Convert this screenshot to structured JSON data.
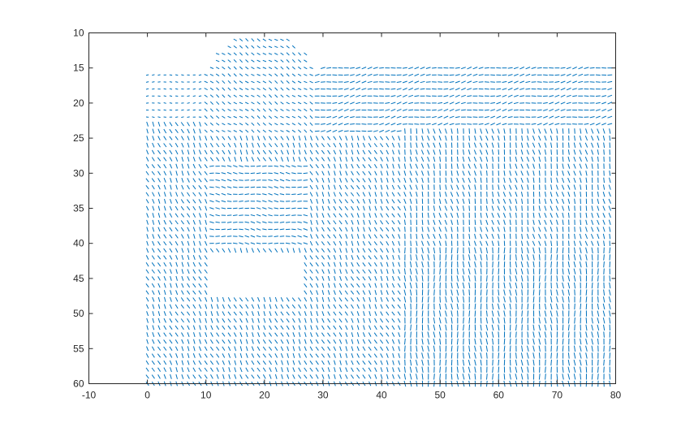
{
  "chart_data": {
    "type": "quiver",
    "title": "",
    "xlabel": "",
    "ylabel": "",
    "xlim": [
      -10,
      80
    ],
    "ylim": [
      10,
      60
    ],
    "y_axis_direction": "reverse",
    "x_ticks": [
      -10,
      0,
      10,
      20,
      30,
      40,
      50,
      60,
      70,
      80
    ],
    "y_ticks": [
      10,
      15,
      20,
      25,
      30,
      35,
      40,
      45,
      50,
      55,
      60
    ],
    "grid": false,
    "box": true,
    "series_color": "#0072BD",
    "grid_spacing": 1,
    "x_range": [
      0,
      79
    ],
    "y_range": [
      10,
      60
    ],
    "regions": [
      {
        "name": "background-band",
        "x": [
          0,
          79
        ],
        "y": [
          16,
          60
        ],
        "angle_deg": 0,
        "seg_len": 0.45
      },
      {
        "name": "upper-left-field",
        "x": [
          0,
          44
        ],
        "y": [
          23,
          60
        ],
        "angle_deg": 120,
        "seg_len": 0.7
      },
      {
        "name": "round-top-shape",
        "x": [
          10,
          29
        ],
        "y": [
          10,
          24
        ],
        "angle_deg": 150,
        "seg_len": 0.6
      },
      {
        "name": "right-stripes",
        "x": [
          29,
          79
        ],
        "y": [
          15,
          24
        ],
        "angle_deg": 8,
        "seg_len": 0.8
      },
      {
        "name": "inner-box-left",
        "x": [
          11,
          27
        ],
        "y": [
          29,
          40
        ],
        "angle_deg": 175,
        "seg_len": 0.75
      },
      {
        "name": "lower-right-field",
        "x": [
          44,
          79
        ],
        "y": [
          40,
          60
        ],
        "angle_deg": 95,
        "seg_len": 0.85
      },
      {
        "name": "inner-box-right",
        "x": [
          50,
          68
        ],
        "y": [
          26,
          40
        ],
        "angle_deg": 60,
        "seg_len": 0.7
      },
      {
        "name": "mid-right-field",
        "x": [
          44,
          79
        ],
        "y": [
          24,
          40
        ],
        "angle_deg": 105,
        "seg_len": 0.75
      }
    ],
    "empty_rects": [
      {
        "x": [
          10.5,
          26.5
        ],
        "y": [
          41.5,
          47
        ]
      }
    ]
  }
}
